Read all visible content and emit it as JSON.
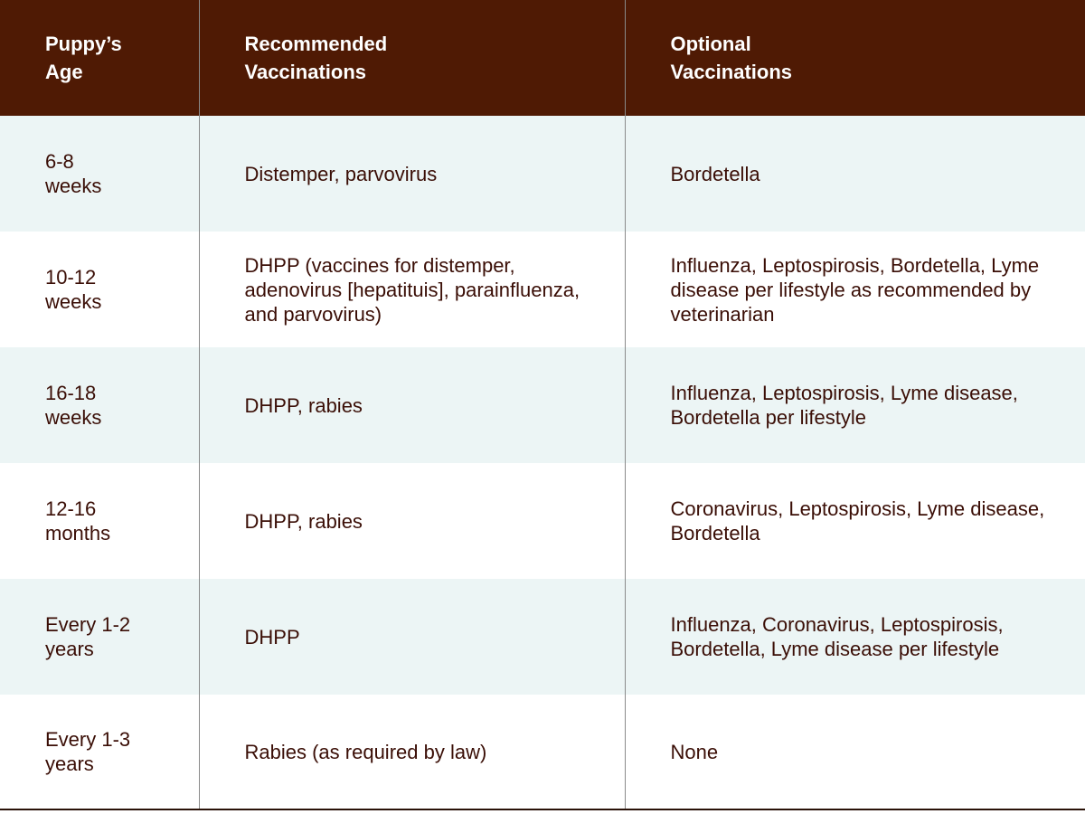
{
  "table": {
    "headers": [
      [
        "Puppy’s",
        "Age"
      ],
      [
        "Recommended",
        "Vaccinations"
      ],
      [
        "Optional",
        "Vaccinations"
      ]
    ],
    "rows": [
      {
        "age": [
          "6-8",
          "weeks"
        ],
        "recommended": "Distemper, parvovirus",
        "optional": "Bordetella"
      },
      {
        "age": [
          "10-12",
          "weeks"
        ],
        "recommended": "DHPP (vaccines for distemper, adenovirus [hepatituis], parainfluenza, and parvovirus)",
        "optional": "Influenza, Leptospirosis, Bordetella, Lyme disease per lifestyle as recommended by veterinarian"
      },
      {
        "age": [
          "16-18",
          "weeks"
        ],
        "recommended": "DHPP, rabies",
        "optional": "Influenza, Leptospirosis, Lyme disease, Bordetella per lifestyle"
      },
      {
        "age": [
          "12-16",
          "months"
        ],
        "recommended": "DHPP, rabies",
        "optional": "Coronavirus, Leptospirosis, Lyme disease, Bordetella"
      },
      {
        "age": [
          "Every 1-2",
          "years"
        ],
        "recommended": "DHPP",
        "optional": "Influenza, Coronavirus, Leptospirosis, Bordetella, Lyme disease per lifestyle"
      },
      {
        "age": [
          "Every 1-3",
          "years"
        ],
        "recommended": "Rabies (as required by law)",
        "optional": "None"
      }
    ]
  },
  "colors": {
    "header_bg": "#4f1a04",
    "header_text": "#ffffff",
    "row_alt_bg": "#ecf5f5",
    "row_bg": "#ffffff",
    "body_text": "#3a0e06"
  }
}
